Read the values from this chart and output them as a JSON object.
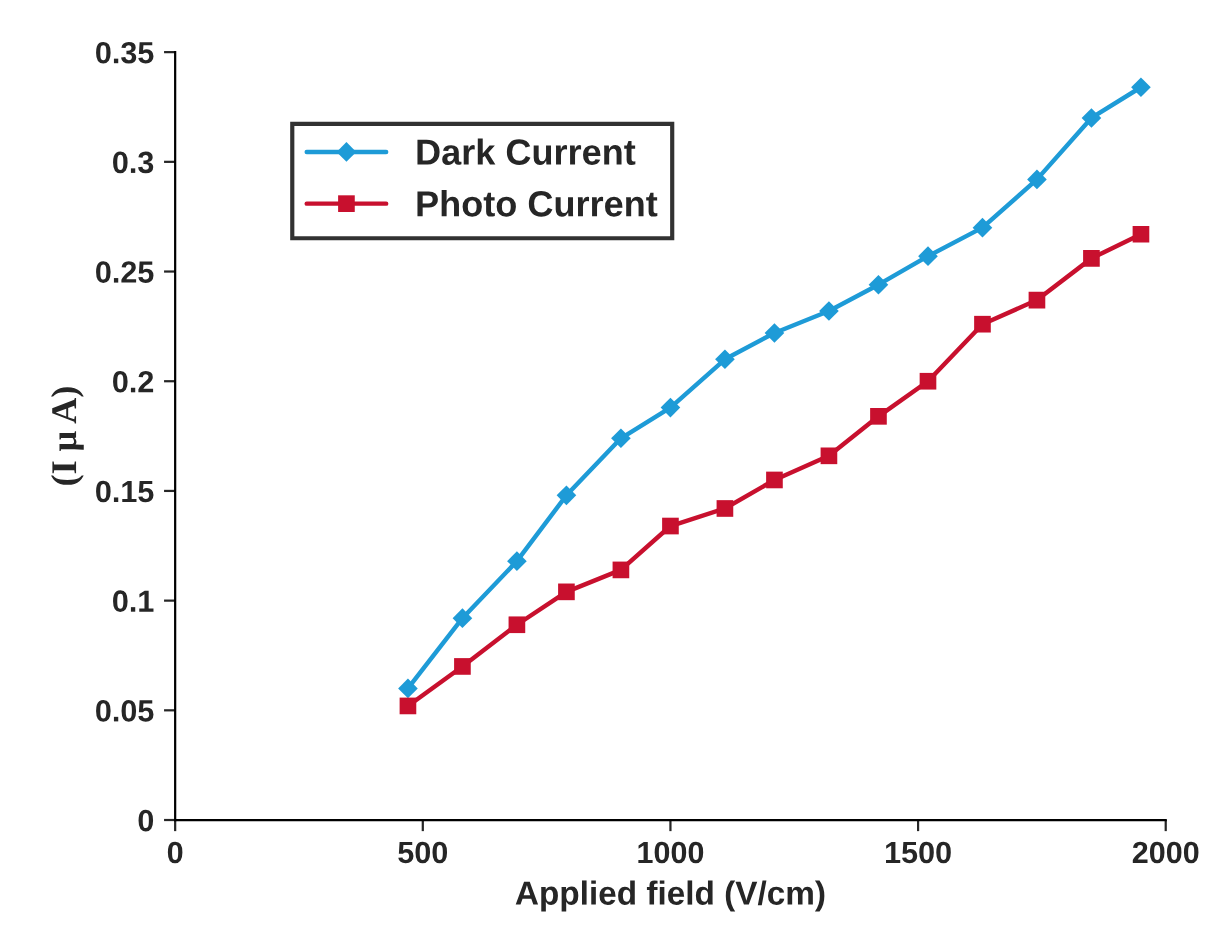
{
  "chart_data": {
    "type": "line",
    "xlabel": "Applied field (V/cm)",
    "ylabel": "(I μ A)",
    "x": [
      470,
      580,
      690,
      790,
      900,
      1000,
      1110,
      1210,
      1320,
      1420,
      1520,
      1630,
      1740,
      1850,
      1950
    ],
    "series": [
      {
        "name": "Dark Current",
        "color": "#1e9bd7",
        "marker": "diamond",
        "values": [
          0.06,
          0.092,
          0.118,
          0.148,
          0.174,
          0.188,
          0.21,
          0.222,
          0.232,
          0.244,
          0.257,
          0.27,
          0.292,
          0.32,
          0.334
        ]
      },
      {
        "name": "Photo Current",
        "color": "#c8102e",
        "marker": "square",
        "values": [
          0.052,
          0.07,
          0.089,
          0.104,
          0.114,
          0.134,
          0.142,
          0.155,
          0.166,
          0.184,
          0.2,
          0.226,
          0.237,
          0.256,
          0.267
        ]
      }
    ],
    "xlim": [
      0,
      2000
    ],
    "xticks": [
      0,
      500,
      1000,
      1500,
      2000
    ],
    "ylim": [
      0,
      0.35
    ],
    "yticks": [
      0,
      0.05,
      0.1,
      0.15,
      0.2,
      0.25,
      0.3,
      0.35
    ],
    "legend": "top left",
    "grid": false,
    "line_style": "solid"
  }
}
